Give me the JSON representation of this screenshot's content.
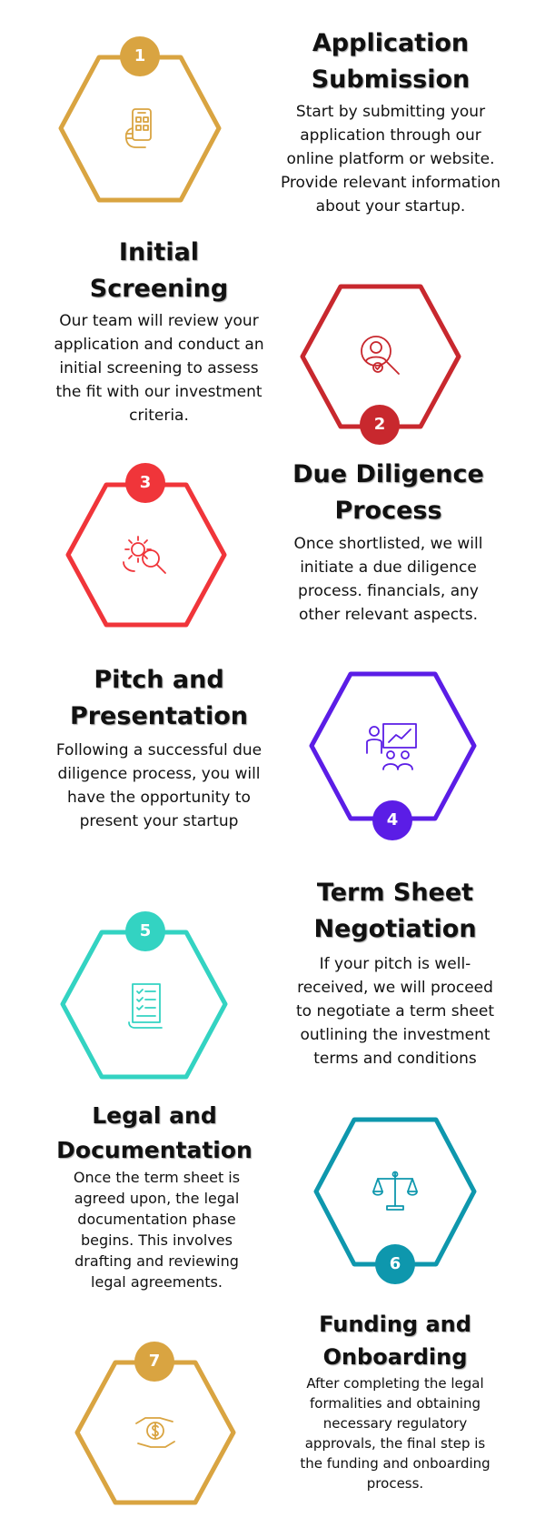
{
  "colors": {
    "gold": "#d9a441",
    "crimson": "#c8282e",
    "red": "#f0353a",
    "purple": "#5b1de6",
    "teal": "#33d3c2",
    "dark_teal": "#0e97ad",
    "gold2": "#d9a441"
  },
  "steps": [
    {
      "number": "1",
      "title": "Application Submission",
      "description": "Start by submitting your application through our online platform or website. Provide relevant information about your startup.",
      "icon": "smartphone-hand-icon"
    },
    {
      "number": "2",
      "title": "Initial Screening",
      "description": "Our team will review your application and conduct an initial screening to assess the fit with our investment criteria.",
      "icon": "person-search-icon"
    },
    {
      "number": "3",
      "title": "Due Diligence Process",
      "description": "Once shortlisted, we will initiate a due diligence process. financials, any other relevant aspects.",
      "icon": "gear-search-icon"
    },
    {
      "number": "4",
      "title": "Pitch and Presentation",
      "description": "Following a successful due diligence process, you will have the opportunity to present your startup",
      "icon": "presentation-icon"
    },
    {
      "number": "5",
      "title": "Term Sheet Negotiation",
      "description": "If your pitch is well-received, we will proceed to negotiate a term sheet outlining the investment terms and conditions",
      "icon": "document-checklist-icon"
    },
    {
      "number": "6",
      "title": "Legal and Documentation",
      "description": "Once the term sheet is agreed upon, the legal documentation phase begins. This involves drafting and reviewing legal agreements.",
      "icon": "scales-icon"
    },
    {
      "number": "7",
      "title": "Funding and Onboarding",
      "description": "After completing the legal formalities and obtaining necessary regulatory approvals, the final step is the funding and onboarding process.",
      "icon": "money-hand-icon"
    }
  ]
}
